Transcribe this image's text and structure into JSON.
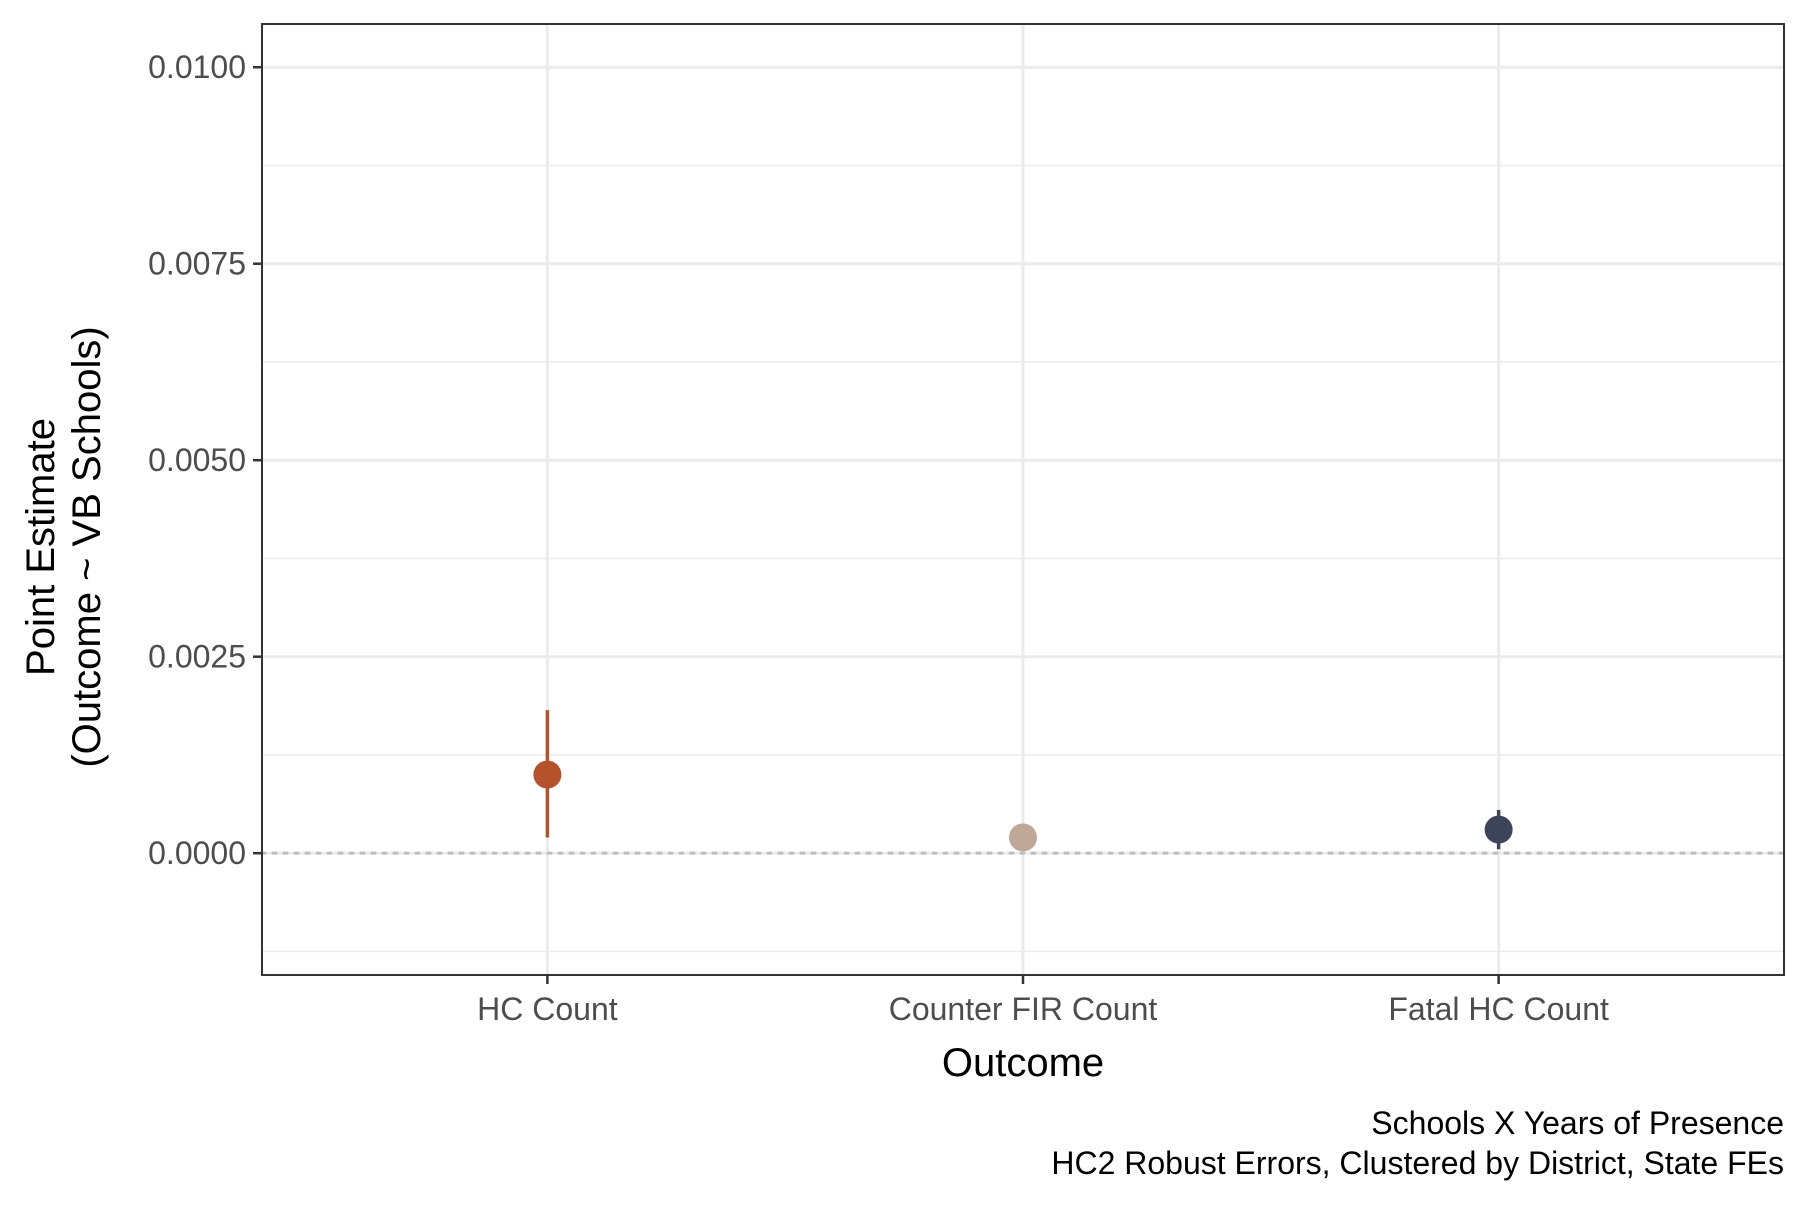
{
  "chart_data": {
    "type": "scatter",
    "subtype": "point-range",
    "title": "",
    "xlabel": "Outcome",
    "ylabel_lines": [
      "Point Estimate",
      "(Outcome ~ VB Schools)"
    ],
    "categories": [
      "HC Count",
      "Counter FIR Count",
      "Fatal HC Count"
    ],
    "points": [
      {
        "category": "HC Count",
        "estimate": 0.001,
        "lower": 0.0002,
        "upper": 0.00182,
        "color": "#b5522b"
      },
      {
        "category": "Counter FIR Count",
        "estimate": 0.0002,
        "lower": 0.00018,
        "upper": 0.00022,
        "color": "#bfa897"
      },
      {
        "category": "Fatal HC Count",
        "estimate": 0.0003,
        "lower": 5e-05,
        "upper": 0.00055,
        "color": "#3d4459"
      }
    ],
    "ylim": [
      -0.00155,
      0.01055
    ],
    "y_major_ticks": [
      0.0,
      0.0025,
      0.005,
      0.0075,
      0.01
    ],
    "y_tick_labels": [
      "0.0000",
      "0.0025",
      "0.0050",
      "0.0075",
      "0.0100"
    ],
    "y_minor_ticks": [
      -0.00125,
      0.00125,
      0.00375,
      0.00625,
      0.00875
    ],
    "reference_line": {
      "y": 0.0,
      "style": "dotted",
      "color": "#bdbdbd"
    },
    "grid": true,
    "legend": "none",
    "caption_lines": [
      "Schools X Years of Presence",
      "HC2 Robust Errors, Clustered by District, State FEs"
    ]
  }
}
